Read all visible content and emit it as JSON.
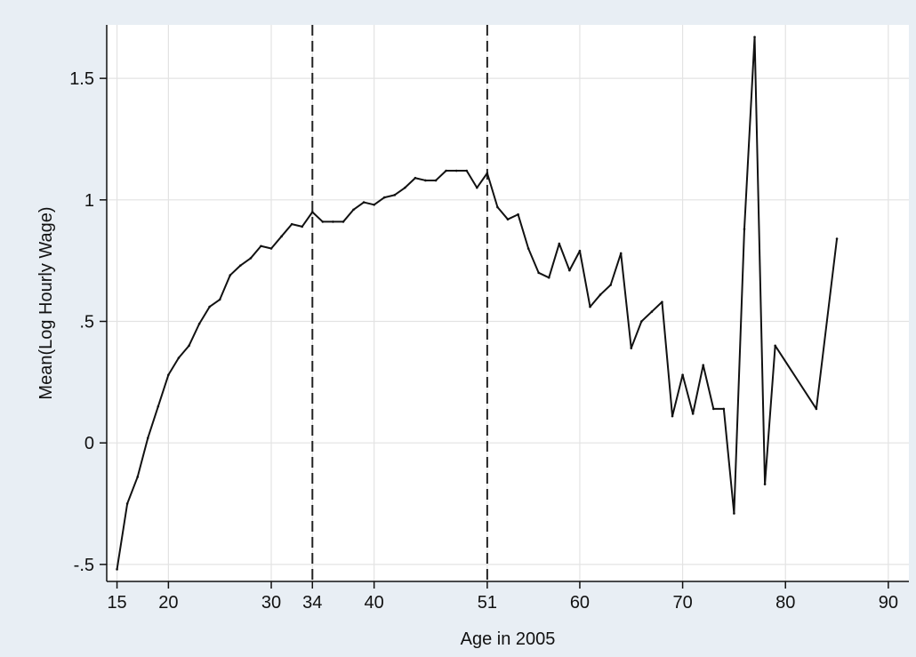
{
  "chart_data": {
    "type": "line",
    "title": "",
    "xlabel": "Age in 2005",
    "ylabel": "Mean(Log Hourly Wage)",
    "xlim": [
      14,
      92
    ],
    "ylim": [
      -0.57,
      1.72
    ],
    "xticks": [
      15,
      20,
      30,
      34,
      40,
      51,
      60,
      70,
      80,
      90
    ],
    "xtick_labels": [
      "15",
      "20",
      "30",
      "34",
      "40",
      "51",
      "60",
      "70",
      "80",
      "90"
    ],
    "yticks": [
      -0.5,
      0,
      0.5,
      1,
      1.5
    ],
    "ytick_labels": [
      "-.5",
      "0",
      ".5",
      "1",
      "1.5"
    ],
    "grid": true,
    "legend": "none",
    "reference_lines_x": [
      34,
      51
    ],
    "colors": {
      "background": "#e8eef4",
      "plot_area": "#ffffff",
      "grid": "#e3e3e3",
      "line": "#111111"
    },
    "series": [
      {
        "x": [
          15,
          16,
          17,
          18,
          19,
          20,
          21,
          22,
          23,
          24,
          25,
          26,
          27,
          28,
          29,
          30,
          31,
          32,
          33,
          34,
          35,
          36,
          37,
          38,
          39,
          40,
          41,
          42,
          43,
          44,
          45,
          46,
          47,
          48,
          49,
          50,
          51,
          52,
          53,
          54,
          55,
          56,
          57,
          58,
          59,
          60,
          61,
          62,
          63,
          64,
          65,
          66,
          67,
          68,
          69,
          70,
          71,
          72,
          73,
          74,
          75,
          76,
          77,
          78,
          79,
          83,
          85
        ],
        "y": [
          -0.52,
          -0.25,
          -0.14,
          0.02,
          0.15,
          0.28,
          0.35,
          0.4,
          0.49,
          0.56,
          0.59,
          0.69,
          0.73,
          0.76,
          0.81,
          0.8,
          0.85,
          0.9,
          0.89,
          0.95,
          0.91,
          0.91,
          0.91,
          0.96,
          0.99,
          0.98,
          1.01,
          1.02,
          1.05,
          1.09,
          1.08,
          1.08,
          1.12,
          1.12,
          1.12,
          1.05,
          1.11,
          0.97,
          0.92,
          0.94,
          0.8,
          0.7,
          0.68,
          0.82,
          0.71,
          0.79,
          0.56,
          0.61,
          0.65,
          0.78,
          0.39,
          0.5,
          0.54,
          0.58,
          0.11,
          0.28,
          0.12,
          0.32,
          0.14,
          0.14,
          -0.29,
          0.88,
          1.67,
          -0.17,
          0.4,
          0.14,
          0.84
        ]
      }
    ]
  }
}
